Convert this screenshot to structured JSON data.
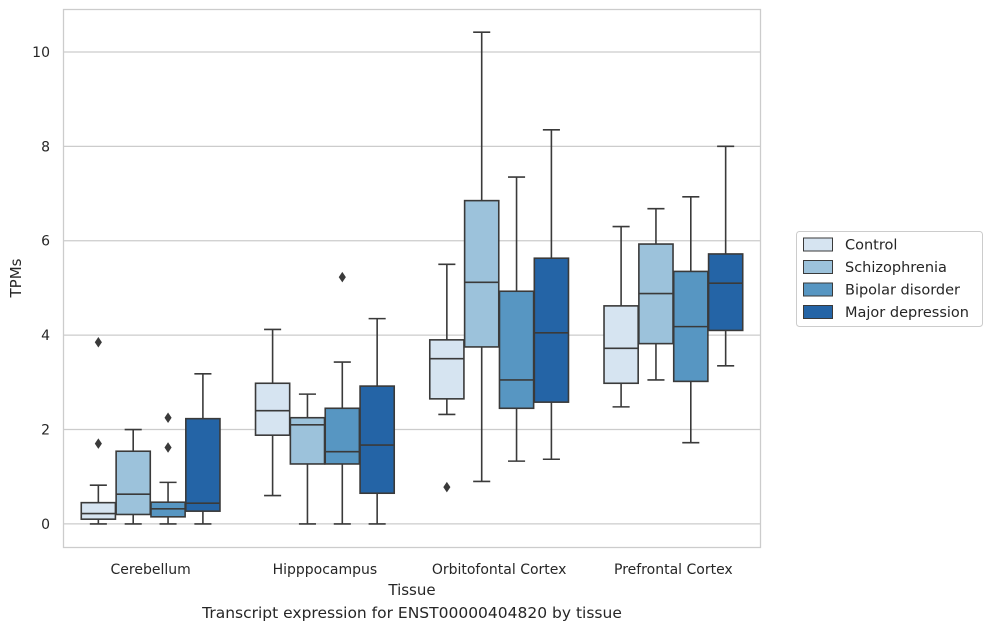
{
  "chart_data": {
    "type": "box",
    "caption": "Transcript expression for ENST00000404820 by tissue",
    "xlabel": "Tissue",
    "ylabel": "TPMs",
    "ylim": [
      -0.5,
      10.9
    ],
    "yticks": [
      0,
      2,
      4,
      6,
      8,
      10
    ],
    "grid": "horizontal",
    "legend_position": "right",
    "categories": [
      "Cerebellum",
      "Hipppocampus",
      "Orbitofontal Cortex",
      "Prefrontal Cortex"
    ],
    "series": [
      {
        "name": "Control",
        "color": "#d6e4f1",
        "boxes": [
          {
            "whislo": 0.0,
            "q1": 0.1,
            "med": 0.22,
            "q3": 0.45,
            "whishi": 0.82,
            "fliers": [
              3.85,
              1.7
            ]
          },
          {
            "whislo": 0.6,
            "q1": 1.88,
            "med": 2.4,
            "q3": 2.98,
            "whishi": 4.12,
            "fliers": []
          },
          {
            "whislo": 2.32,
            "q1": 2.65,
            "med": 3.5,
            "q3": 3.9,
            "whishi": 5.5,
            "fliers": [
              0.78
            ]
          },
          {
            "whislo": 2.48,
            "q1": 2.98,
            "med": 3.72,
            "q3": 4.62,
            "whishi": 6.3,
            "fliers": []
          }
        ]
      },
      {
        "name": "Schizophrenia",
        "color": "#9cc2db",
        "boxes": [
          {
            "whislo": 0.0,
            "q1": 0.2,
            "med": 0.63,
            "q3": 1.54,
            "whishi": 2.0,
            "fliers": []
          },
          {
            "whislo": 0.0,
            "q1": 1.27,
            "med": 2.1,
            "q3": 2.25,
            "whishi": 2.75,
            "fliers": []
          },
          {
            "whislo": 0.9,
            "q1": 3.75,
            "med": 5.12,
            "q3": 6.85,
            "whishi": 10.42,
            "fliers": []
          },
          {
            "whislo": 3.05,
            "q1": 3.82,
            "med": 4.88,
            "q3": 5.93,
            "whishi": 6.68,
            "fliers": []
          }
        ]
      },
      {
        "name": "Bipolar disorder",
        "color": "#5796c2",
        "boxes": [
          {
            "whislo": 0.0,
            "q1": 0.15,
            "med": 0.32,
            "q3": 0.46,
            "whishi": 0.88,
            "fliers": [
              2.25,
              1.62
            ]
          },
          {
            "whislo": 0.0,
            "q1": 1.27,
            "med": 1.53,
            "q3": 2.45,
            "whishi": 3.43,
            "fliers": [
              5.23
            ]
          },
          {
            "whislo": 1.33,
            "q1": 2.45,
            "med": 3.05,
            "q3": 4.93,
            "whishi": 7.35,
            "fliers": []
          },
          {
            "whislo": 1.72,
            "q1": 3.02,
            "med": 4.18,
            "q3": 5.35,
            "whishi": 6.93,
            "fliers": []
          }
        ]
      },
      {
        "name": "Major depression",
        "color": "#2464a6",
        "boxes": [
          {
            "whislo": 0.0,
            "q1": 0.27,
            "med": 0.44,
            "q3": 2.23,
            "whishi": 3.18,
            "fliers": []
          },
          {
            "whislo": 0.0,
            "q1": 0.65,
            "med": 1.67,
            "q3": 2.92,
            "whishi": 4.35,
            "fliers": []
          },
          {
            "whislo": 1.37,
            "q1": 2.58,
            "med": 4.05,
            "q3": 5.63,
            "whishi": 8.35,
            "fliers": []
          },
          {
            "whislo": 3.35,
            "q1": 4.1,
            "med": 5.1,
            "q3": 5.72,
            "whishi": 8.0,
            "fliers": []
          }
        ]
      }
    ]
  }
}
